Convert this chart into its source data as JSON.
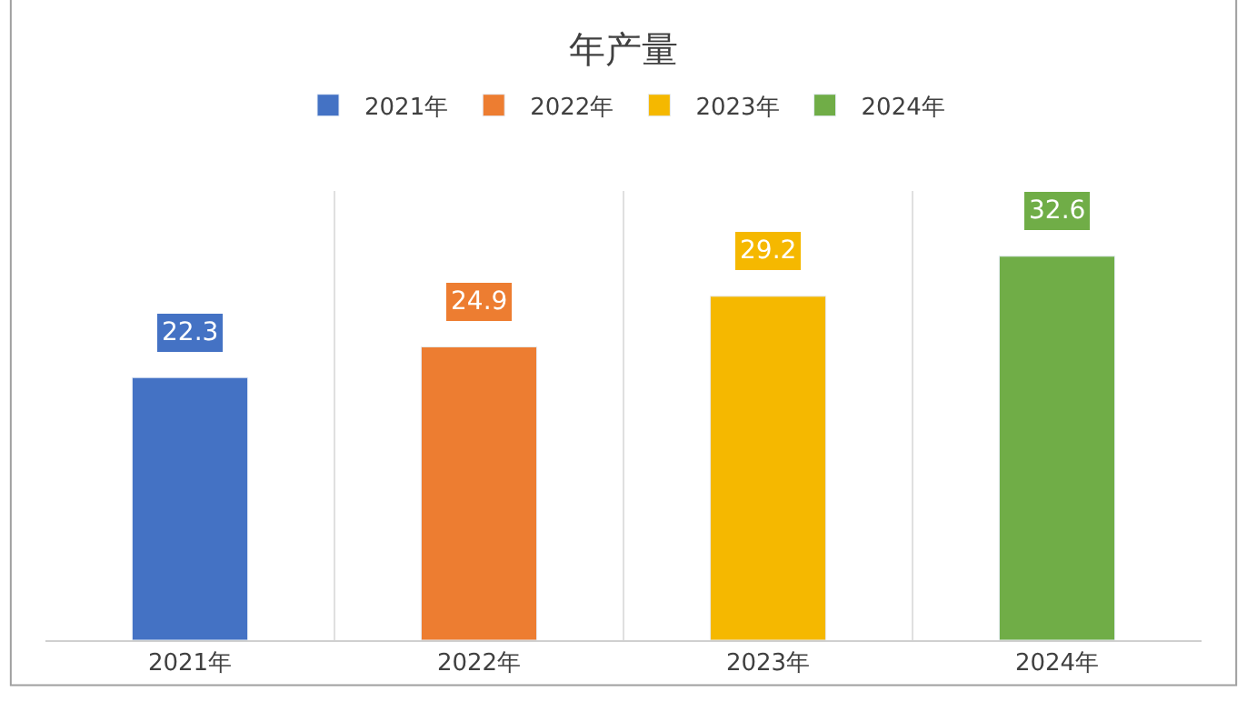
{
  "chart_data": {
    "type": "bar",
    "title": "年产量",
    "categories": [
      "2021年",
      "2022年",
      "2023年",
      "2024年"
    ],
    "series": [
      {
        "name": "2021年",
        "color": "#4472c4",
        "values": [
          22.3,
          null,
          null,
          null
        ]
      },
      {
        "name": "2022年",
        "color": "#ed7d31",
        "values": [
          null,
          24.9,
          null,
          null
        ]
      },
      {
        "name": "2023年",
        "color": "#f5b800",
        "values": [
          null,
          null,
          29.2,
          null
        ]
      },
      {
        "name": "2024年",
        "color": "#70ad47",
        "values": [
          null,
          null,
          null,
          32.6
        ]
      }
    ],
    "data_labels": true,
    "grid": "x",
    "legend": "top",
    "tick_labels": "x"
  }
}
